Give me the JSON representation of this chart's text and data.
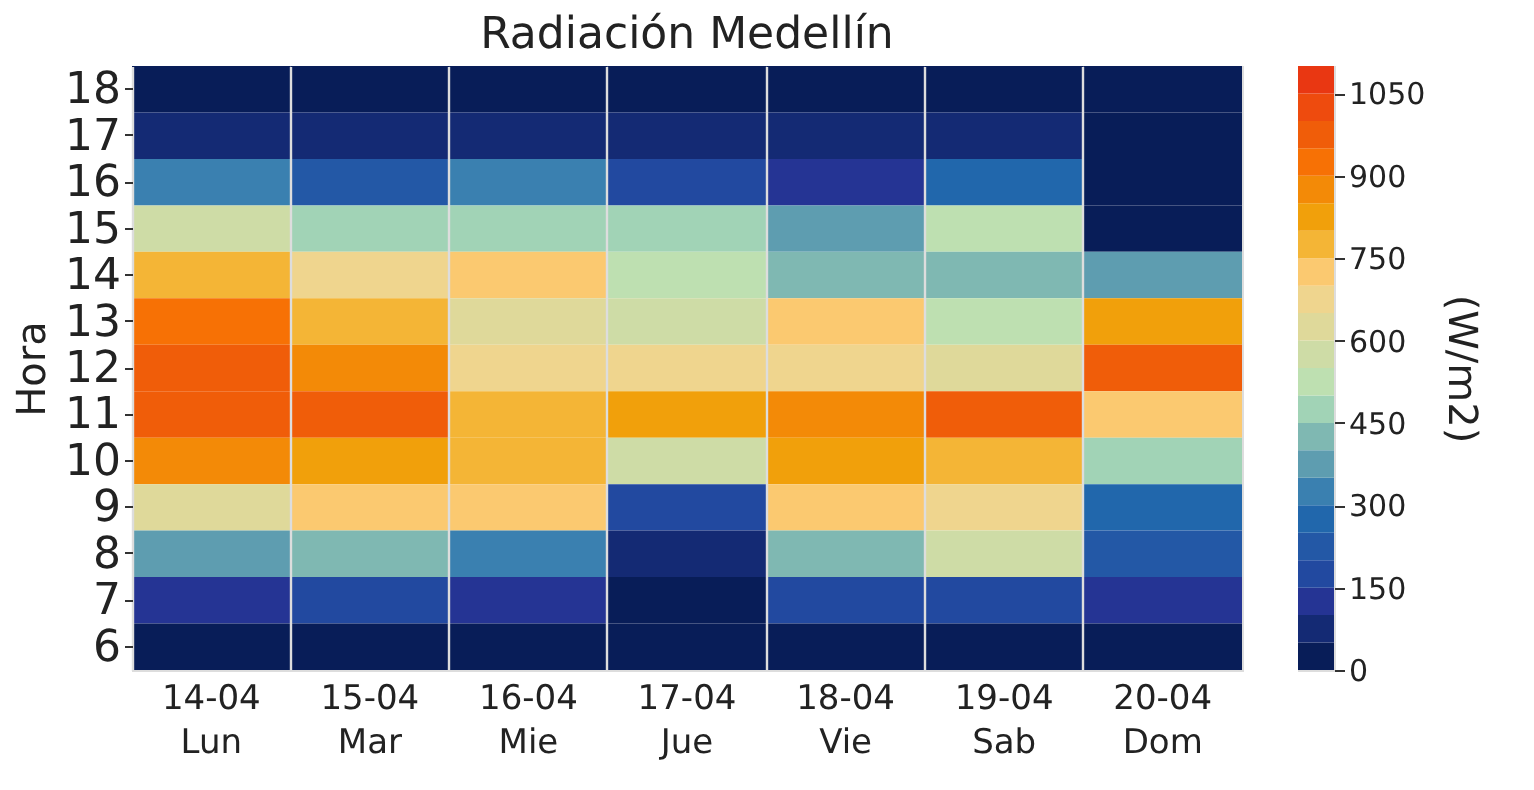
{
  "chart_data": {
    "type": "heatmap",
    "title": "Radiación Medellín",
    "ylabel": "Hora",
    "clabel": "(W/m2)",
    "categories": [
      "14-04\nLun",
      "15-04\nMar",
      "16-04\nMie",
      "17-04\nJue",
      "18-04\nVie",
      "19-04\nSab",
      "20-04\nDom"
    ],
    "y_categories": [
      "18",
      "17",
      "16",
      "15",
      "14",
      "13",
      "12",
      "11",
      "10",
      "9",
      "8",
      "7",
      "6"
    ],
    "cells": [
      [
        25,
        25,
        25,
        25,
        25,
        25,
        25
      ],
      [
        75,
        75,
        75,
        75,
        75,
        75,
        25
      ],
      [
        325,
        225,
        325,
        175,
        125,
        275,
        25
      ],
      [
        575,
        475,
        475,
        475,
        375,
        525,
        25
      ],
      [
        775,
        675,
        725,
        525,
        425,
        425,
        375
      ],
      [
        925,
        775,
        625,
        575,
        725,
        525,
        825
      ],
      [
        975,
        875,
        675,
        675,
        675,
        625,
        975
      ],
      [
        975,
        975,
        775,
        825,
        875,
        975,
        725
      ],
      [
        875,
        825,
        775,
        575,
        825,
        775,
        475
      ],
      [
        625,
        725,
        725,
        175,
        725,
        675,
        275
      ],
      [
        375,
        425,
        325,
        75,
        425,
        575,
        225
      ],
      [
        125,
        175,
        125,
        25,
        175,
        175,
        125
      ],
      [
        25,
        25,
        25,
        25,
        25,
        25,
        25
      ]
    ],
    "colors": [
      "#081d58",
      "#142a74",
      "#253494",
      "#2249a0",
      "#2358a6",
      "#2167ac",
      "#3a80b0",
      "#5e9db0",
      "#7fb8b2",
      "#a1d3b6",
      "#bee0b1",
      "#cedca6",
      "#dfd99a",
      "#efd58e",
      "#fbc970",
      "#f4b536",
      "#f1a00b",
      "#f38a07",
      "#f77105",
      "#f05d09",
      "#ee4b0e",
      "#e93712"
    ],
    "clim": [
      0,
      1100
    ],
    "cticks": [
      0,
      150,
      300,
      450,
      600,
      750,
      900,
      1050
    ],
    "grid": "x"
  }
}
